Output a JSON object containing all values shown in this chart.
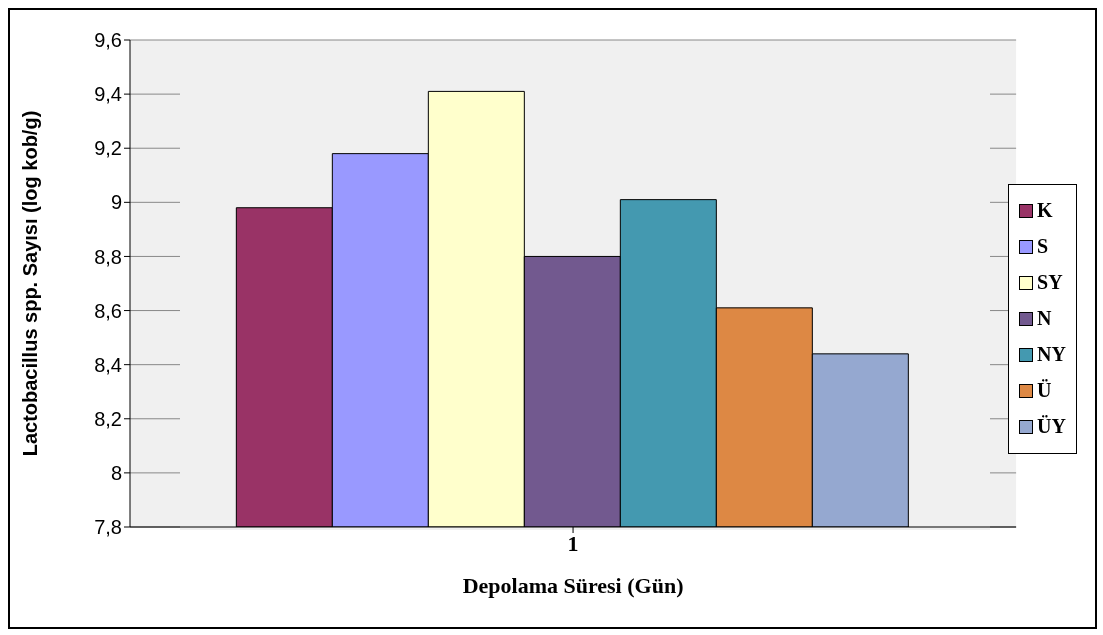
{
  "chart_data": {
    "type": "bar",
    "categories": [
      "1"
    ],
    "xlabel": "Depolama Süresi (Gün)",
    "ylabel": "Lactobacillus spp. Sayısı (log kob/g)",
    "series": [
      {
        "name": "K",
        "color": "#993366",
        "values": [
          8.98
        ]
      },
      {
        "name": "S",
        "color": "#9999ff",
        "values": [
          9.18
        ]
      },
      {
        "name": "SY",
        "color": "#ffffcc",
        "values": [
          9.41
        ]
      },
      {
        "name": "N",
        "color": "#72598f",
        "values": [
          8.8
        ]
      },
      {
        "name": "NY",
        "color": "#4499b0",
        "values": [
          9.01
        ]
      },
      {
        "name": "Ü",
        "color": "#dd8844",
        "values": [
          8.61
        ]
      },
      {
        "name": "ÜY",
        "color": "#95a8d0",
        "values": [
          8.44
        ]
      }
    ],
    "ylim": [
      7.8,
      9.6
    ],
    "yticks": [
      {
        "value": 7.8,
        "label": "7,8"
      },
      {
        "value": 8,
        "label": "8"
      },
      {
        "value": 8.2,
        "label": "8,2"
      },
      {
        "value": 8.4,
        "label": "8,4"
      },
      {
        "value": 8.6,
        "label": "8,6"
      },
      {
        "value": 8.8,
        "label": "8,8"
      },
      {
        "value": 9,
        "label": "9"
      },
      {
        "value": 9.2,
        "label": "9,2"
      },
      {
        "value": 9.4,
        "label": "9,4"
      },
      {
        "value": 9.6,
        "label": "9,6"
      }
    ],
    "grid": "y",
    "legend": "right"
  }
}
